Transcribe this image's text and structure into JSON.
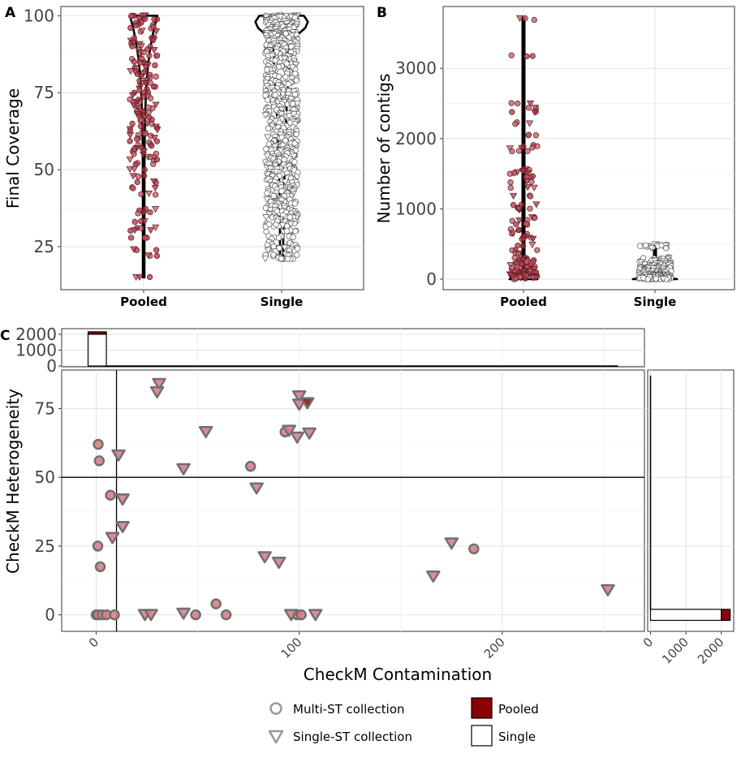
{
  "colors": {
    "pooled": "#8b0000",
    "single": "#ffffff",
    "point_pooled": "#c04a55",
    "panel_border": "#333333",
    "grid": "#e6e6e6"
  },
  "chart_data": [
    {
      "panel": "A",
      "type": "violin+jitter",
      "ylabel": "Final Coverage",
      "categories": [
        "Pooled",
        "Single"
      ],
      "yticks": [
        25,
        50,
        75,
        100
      ],
      "ylim": [
        11,
        103
      ],
      "series": [
        {
          "name": "Pooled",
          "min": 15,
          "max": 100,
          "values": [
            100,
            100,
            99,
            99,
            98,
            97,
            96,
            95,
            93,
            92,
            91,
            90,
            89,
            88,
            87,
            86,
            85,
            84,
            83,
            82,
            81,
            80,
            79,
            78,
            77,
            76,
            75,
            74,
            73,
            72,
            71,
            70,
            69,
            68,
            67,
            66,
            65,
            64,
            63,
            62,
            61,
            60,
            59,
            58,
            57,
            56,
            55,
            54,
            53,
            52,
            50,
            48,
            46,
            44,
            42,
            37,
            36,
            33,
            31,
            30,
            28,
            24,
            22,
            15
          ]
        },
        {
          "name": "Single",
          "min": 21,
          "max": 100,
          "values": [
            100,
            100,
            100,
            99,
            99,
            99,
            98,
            98,
            97,
            97,
            96,
            96,
            95,
            95,
            94,
            94,
            93,
            92,
            92,
            91,
            90,
            90,
            89,
            88,
            88,
            87,
            86,
            85,
            84,
            83,
            82,
            81,
            80,
            79,
            78,
            77,
            76,
            75,
            74,
            73,
            72,
            71,
            70,
            69,
            68,
            67,
            66,
            65,
            64,
            63,
            62,
            61,
            60,
            59,
            58,
            57,
            56,
            55,
            54,
            53,
            52,
            51,
            50,
            49,
            48,
            47,
            46,
            45,
            44,
            43,
            42,
            41,
            40,
            39,
            38,
            37,
            36,
            35,
            34,
            33,
            32,
            30,
            28,
            26,
            25,
            24,
            22,
            21
          ]
        }
      ]
    },
    {
      "panel": "B",
      "type": "violin+jitter",
      "ylabel": "Number of contigs",
      "categories": [
        "Pooled",
        "Single"
      ],
      "yticks": [
        0,
        1000,
        2000,
        3000
      ],
      "ylim": [
        -150,
        3880
      ],
      "series": [
        {
          "name": "Pooled",
          "min": 0,
          "max": 3720,
          "values": [
            3700,
            3180,
            2500,
            2430,
            2380,
            2220,
            2050,
            1900,
            1870,
            1820,
            1560,
            1530,
            1500,
            1460,
            1380,
            1310,
            1180,
            1050,
            1010,
            990,
            870,
            840,
            780,
            700,
            650,
            600,
            560,
            480,
            420,
            360,
            300,
            280,
            260,
            240,
            220,
            200,
            180,
            160,
            140,
            120,
            100,
            90,
            80,
            70,
            60,
            50,
            40,
            30,
            20,
            10
          ]
        },
        {
          "name": "Single",
          "min": 0,
          "max": 500,
          "values": [
            480,
            460,
            300,
            250,
            220,
            200,
            180,
            160,
            150,
            140,
            130,
            120,
            110,
            100,
            90,
            80,
            70,
            60,
            55,
            50,
            45,
            40,
            35,
            30,
            25,
            20,
            15,
            10,
            5,
            0
          ]
        }
      ]
    },
    {
      "panel": "C",
      "type": "scatter",
      "xlabel": "CheckM Contamination",
      "ylabel": "CheckM Heterogeneity",
      "xticks": [
        0,
        100,
        200
      ],
      "yticks": [
        0,
        25,
        50,
        75
      ],
      "xlim": [
        -17,
        270
      ],
      "ylim": [
        -6,
        89
      ],
      "xline": 10,
      "yline": 50,
      "points": [
        {
          "x": 1,
          "y": 62,
          "shape": "circle"
        },
        {
          "x": 1.5,
          "y": 56,
          "shape": "circle"
        },
        {
          "x": 7,
          "y": 43.5,
          "shape": "circle"
        },
        {
          "x": 0.8,
          "y": 25,
          "shape": "circle"
        },
        {
          "x": 2,
          "y": 17.5,
          "shape": "circle"
        },
        {
          "x": 0,
          "y": 0,
          "shape": "circle"
        },
        {
          "x": 1,
          "y": 0,
          "shape": "circle"
        },
        {
          "x": 3,
          "y": 0,
          "shape": "circle"
        },
        {
          "x": 5,
          "y": 0,
          "shape": "circle"
        },
        {
          "x": 9,
          "y": 0,
          "shape": "circle"
        },
        {
          "x": 49,
          "y": 0,
          "shape": "circle"
        },
        {
          "x": 59,
          "y": 4,
          "shape": "circle"
        },
        {
          "x": 64,
          "y": 0,
          "shape": "circle"
        },
        {
          "x": 76,
          "y": 54,
          "shape": "circle"
        },
        {
          "x": 93,
          "y": 66.5,
          "shape": "circle"
        },
        {
          "x": 99,
          "y": 0,
          "shape": "circle"
        },
        {
          "x": 101,
          "y": 0,
          "shape": "circle"
        },
        {
          "x": 186,
          "y": 24,
          "shape": "circle"
        },
        {
          "x": 31,
          "y": 84,
          "shape": "triangle"
        },
        {
          "x": 30,
          "y": 81,
          "shape": "triangle"
        },
        {
          "x": 11,
          "y": 58,
          "shape": "triangle"
        },
        {
          "x": 13,
          "y": 42,
          "shape": "triangle"
        },
        {
          "x": 13,
          "y": 32,
          "shape": "triangle"
        },
        {
          "x": 8,
          "y": 28,
          "shape": "triangle"
        },
        {
          "x": 24,
          "y": 0,
          "shape": "triangle"
        },
        {
          "x": 27,
          "y": 0,
          "shape": "triangle"
        },
        {
          "x": 43,
          "y": 0.5,
          "shape": "triangle"
        },
        {
          "x": 43,
          "y": 53,
          "shape": "triangle"
        },
        {
          "x": 54,
          "y": 66.5,
          "shape": "triangle"
        },
        {
          "x": 79,
          "y": 46,
          "shape": "triangle"
        },
        {
          "x": 83,
          "y": 21,
          "shape": "triangle"
        },
        {
          "x": 90,
          "y": 19,
          "shape": "triangle"
        },
        {
          "x": 95,
          "y": 67,
          "shape": "triangle"
        },
        {
          "x": 99,
          "y": 64.5,
          "shape": "triangle"
        },
        {
          "x": 100,
          "y": 79.5,
          "shape": "triangle"
        },
        {
          "x": 100,
          "y": 76.5,
          "shape": "triangle"
        },
        {
          "x": 104,
          "y": 77,
          "shape": "triangle",
          "dark": true
        },
        {
          "x": 105,
          "y": 66,
          "shape": "triangle"
        },
        {
          "x": 96,
          "y": 0,
          "shape": "triangle"
        },
        {
          "x": 108,
          "y": 0,
          "shape": "triangle"
        },
        {
          "x": 166,
          "y": 14,
          "shape": "triangle"
        },
        {
          "x": 175,
          "y": 26,
          "shape": "triangle"
        },
        {
          "x": 252,
          "y": 9,
          "shape": "triangle"
        }
      ]
    },
    {
      "panel": "C-top",
      "type": "histogram",
      "yticks": [
        0,
        1000,
        2000
      ],
      "ylim": [
        -50,
        2350
      ],
      "bins": [
        {
          "x0": -4,
          "x1": 5,
          "single": 2000,
          "pooled": 150
        }
      ],
      "baseline": [
        5,
        257
      ]
    },
    {
      "panel": "C-right",
      "type": "histogram",
      "xticks": [
        0,
        1000,
        2000
      ],
      "xlim": [
        -80,
        2350
      ],
      "bins": [
        {
          "y0": -2,
          "y1": 2,
          "single": 2000,
          "pooled": 250
        }
      ],
      "baseline": [
        2,
        87
      ]
    }
  ],
  "legend": {
    "shapes": [
      {
        "label": "Multi-ST collection",
        "icon": "circle-icon"
      },
      {
        "label": "Single-ST collection",
        "icon": "triangle-icon"
      }
    ],
    "fills": [
      {
        "label": "Pooled",
        "color": "#8b0000"
      },
      {
        "label": "Single",
        "color": "#ffffff"
      }
    ]
  }
}
